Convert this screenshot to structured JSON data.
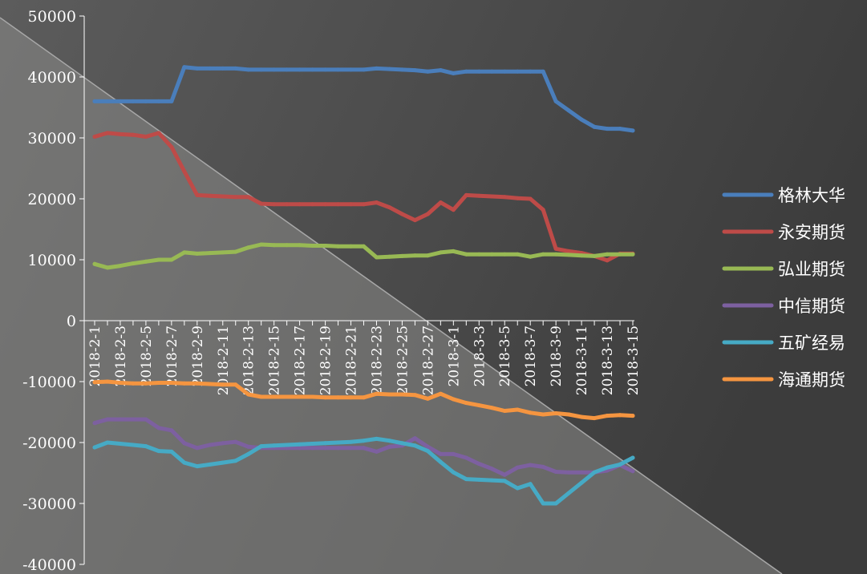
{
  "chart_data": {
    "type": "line",
    "title": "",
    "xlabel": "",
    "ylabel": "",
    "ylim": [
      -40000,
      50000
    ],
    "yticks": [
      "50000",
      "40000",
      "30000",
      "20000",
      "10000",
      "0",
      "-10000",
      "-20000",
      "-30000",
      "-40000"
    ],
    "x": [
      "2018-2-1",
      "2018-2-2",
      "2018-2-3",
      "2018-2-4",
      "2018-2-5",
      "2018-2-6",
      "2018-2-7",
      "2018-2-8",
      "2018-2-9",
      "2018-2-10",
      "2018-2-11",
      "2018-2-12",
      "2018-2-13",
      "2018-2-14",
      "2018-2-15",
      "2018-2-16",
      "2018-2-17",
      "2018-2-18",
      "2018-2-19",
      "2018-2-20",
      "2018-2-21",
      "2018-2-22",
      "2018-2-23",
      "2018-2-24",
      "2018-2-25",
      "2018-2-26",
      "2018-2-27",
      "2018-2-28",
      "2018-3-1",
      "2018-3-2",
      "2018-3-3",
      "2018-3-4",
      "2018-3-5",
      "2018-3-6",
      "2018-3-7",
      "2018-3-8",
      "2018-3-9",
      "2018-3-10",
      "2018-3-11",
      "2018-3-12",
      "2018-3-13",
      "2018-3-14",
      "2018-3-15"
    ],
    "xtick_labels": [
      "2018-2-1",
      "2018-2-3",
      "2018-2-5",
      "2018-2-7",
      "2018-2-9",
      "2018-2-11",
      "2018-2-13",
      "2018-2-15",
      "2018-2-17",
      "2018-2-19",
      "2018-2-21",
      "2018-2-23",
      "2018-2-25",
      "2018-2-27",
      "2018-3-1",
      "2018-3-3",
      "2018-3-5",
      "2018-3-7",
      "2018-3-9",
      "2018-3-11",
      "2018-3-13",
      "2018-3-15"
    ],
    "legend_position": "right",
    "grid": false,
    "series": [
      {
        "name": "格林大华",
        "color": "#4a7ebb",
        "values": [
          36000,
          36000,
          36000,
          36000,
          36000,
          36000,
          36000,
          41600,
          41400,
          41400,
          41400,
          41400,
          41200,
          41200,
          41200,
          41200,
          41200,
          41200,
          41200,
          41200,
          41200,
          41200,
          41400,
          41300,
          41200,
          41100,
          40900,
          41100,
          40600,
          40900,
          40900,
          40900,
          40900,
          40900,
          40900,
          40900,
          36000,
          34500,
          33000,
          31800,
          31500,
          31500,
          31200
        ]
      },
      {
        "name": "永安期货",
        "color": "#be4b48",
        "values": [
          30200,
          30800,
          30600,
          30500,
          30200,
          30800,
          28500,
          24500,
          20600,
          20500,
          20400,
          20300,
          20300,
          19200,
          19100,
          19100,
          19100,
          19100,
          19100,
          19100,
          19100,
          19100,
          19400,
          18600,
          17500,
          16500,
          17500,
          19400,
          18200,
          20600,
          20500,
          20400,
          20300,
          20100,
          20000,
          18200,
          11800,
          11400,
          11100,
          10600,
          9900,
          11000,
          11000
        ]
      },
      {
        "name": "弘业期货",
        "color": "#98b954",
        "values": [
          9300,
          8700,
          9000,
          9400,
          9700,
          10000,
          10000,
          11200,
          11000,
          11100,
          11200,
          11300,
          12000,
          12500,
          12400,
          12400,
          12400,
          12300,
          12300,
          12200,
          12200,
          12200,
          10400,
          10500,
          10600,
          10700,
          10700,
          11200,
          11400,
          10900,
          10900,
          10900,
          10900,
          10900,
          10500,
          10900,
          10900,
          10800,
          10700,
          10600,
          10900,
          10900,
          10900
        ]
      },
      {
        "name": "中信期货",
        "color": "#7d60a0",
        "values": [
          -16800,
          -16200,
          -16200,
          -16200,
          -16200,
          -17600,
          -18000,
          -20100,
          -20900,
          -20400,
          -20100,
          -19900,
          -20700,
          -20900,
          -20900,
          -20900,
          -20900,
          -20900,
          -20900,
          -20900,
          -20900,
          -20900,
          -21500,
          -20700,
          -20500,
          -19300,
          -20700,
          -21900,
          -21900,
          -22500,
          -23500,
          -24300,
          -25300,
          -24100,
          -23700,
          -24000,
          -24800,
          -24900,
          -24900,
          -24900,
          -24600,
          -23700,
          -24700
        ]
      },
      {
        "name": "五矿经易",
        "color": "#46aac5",
        "values": [
          -20800,
          -20000,
          -20200,
          -20400,
          -20600,
          -21400,
          -21500,
          -23300,
          -23900,
          -23600,
          -23300,
          -23000,
          -21900,
          -20600,
          -20500,
          -20400,
          -20300,
          -20200,
          -20100,
          -20000,
          -19900,
          -19700,
          -19400,
          -19700,
          -20100,
          -20500,
          -21400,
          -23200,
          -24900,
          -26000,
          -26100,
          -26200,
          -26300,
          -27500,
          -26800,
          -30000,
          -30000,
          -28300,
          -26600,
          -24900,
          -24100,
          -23600,
          -22500
        ]
      },
      {
        "name": "海通期货",
        "color": "#f59540",
        "values": [
          -10100,
          -10000,
          -10200,
          -10300,
          -10300,
          -10200,
          -10200,
          -10300,
          -10300,
          -10400,
          -10500,
          -10500,
          -12100,
          -12500,
          -12500,
          -12500,
          -12500,
          -12500,
          -12600,
          -12600,
          -12600,
          -12600,
          -12000,
          -12100,
          -12100,
          -12200,
          -12800,
          -12000,
          -12900,
          -13500,
          -13900,
          -14300,
          -14800,
          -14600,
          -15100,
          -15400,
          -15200,
          -15400,
          -15800,
          -16000,
          -15600,
          -15500,
          -15600
        ]
      }
    ]
  }
}
